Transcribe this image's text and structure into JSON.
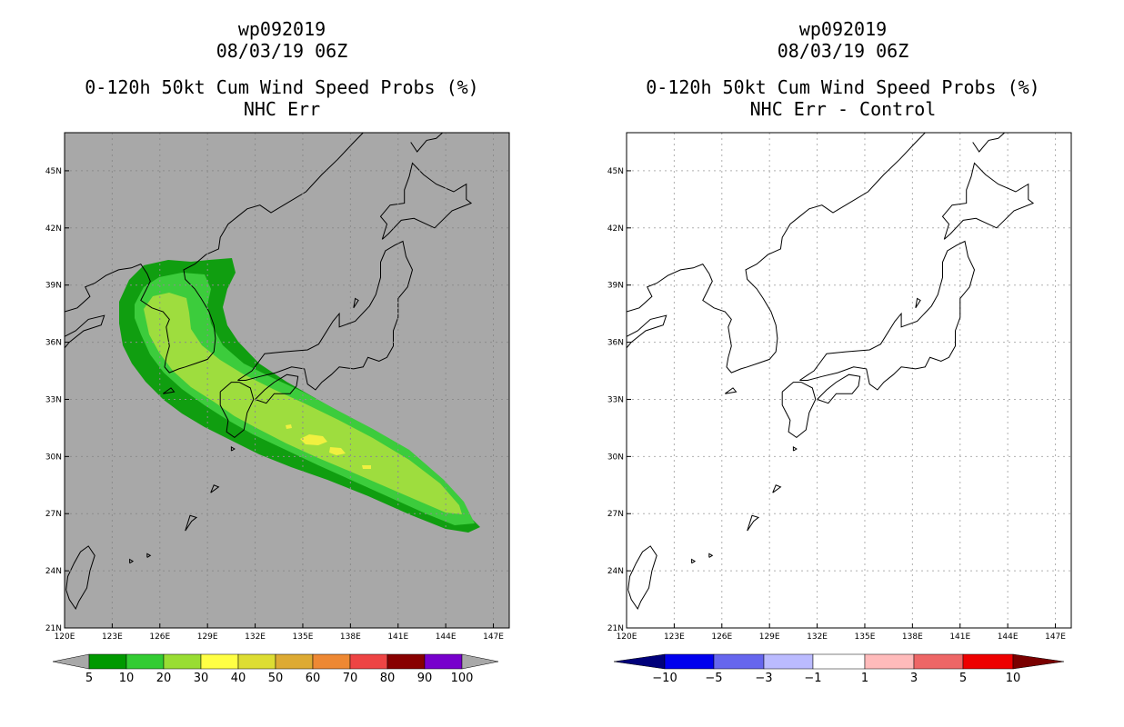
{
  "chart_data": [
    {
      "type": "map",
      "storm_id": "wp092019",
      "datetime": "08/03/19 06Z",
      "title": "0-120h 50kt Cum Wind Speed Probs (%)",
      "subtitle": "NHC Err",
      "xlim": [
        120,
        148
      ],
      "ylim": [
        21,
        47
      ],
      "x_ticks": [
        "120E",
        "123E",
        "126E",
        "129E",
        "132E",
        "135E",
        "138E",
        "141E",
        "144E",
        "147E"
      ],
      "y_ticks": [
        "21N",
        "24N",
        "27N",
        "30N",
        "33N",
        "36N",
        "39N",
        "42N",
        "45N"
      ],
      "grid": true,
      "colorbar": {
        "labels": [
          "5",
          "10",
          "20",
          "30",
          "40",
          "50",
          "60",
          "70",
          "80",
          "90",
          "100"
        ],
        "colors": [
          "#009900",
          "#33cc33",
          "#99dd33",
          "#ffff44",
          "#dddd33",
          "#ddaa33",
          "#ee8833",
          "#ee4444",
          "#880000",
          "#7700cc"
        ]
      },
      "probability_field": [
        {
          "level": "5-10",
          "color": "#109e10"
        },
        {
          "level": "10-20",
          "color": "#3ccc3c"
        },
        {
          "level": "20-30",
          "color": "#9edd3e"
        },
        {
          "level": "30-40",
          "color": "#f0f040"
        }
      ]
    },
    {
      "type": "map",
      "storm_id": "wp092019",
      "datetime": "08/03/19 06Z",
      "title": "0-120h 50kt Cum Wind Speed Probs (%)",
      "subtitle": "NHC Err - Control",
      "xlim": [
        120,
        148
      ],
      "ylim": [
        21,
        47
      ],
      "x_ticks": [
        "120E",
        "123E",
        "126E",
        "129E",
        "132E",
        "135E",
        "138E",
        "141E",
        "144E",
        "147E"
      ],
      "y_ticks": [
        "21N",
        "24N",
        "27N",
        "30N",
        "33N",
        "36N",
        "39N",
        "42N",
        "45N"
      ],
      "grid": true,
      "colorbar": {
        "labels": [
          "−10",
          "−5",
          "−3",
          "−1",
          "1",
          "3",
          "5",
          "10"
        ],
        "colors": [
          "#00007a",
          "#0000ee",
          "#6666ee",
          "#bbbbff",
          "#ffffff",
          "#ffbbbb",
          "#ee6666",
          "#ee0000",
          "#7a0000"
        ]
      }
    }
  ]
}
